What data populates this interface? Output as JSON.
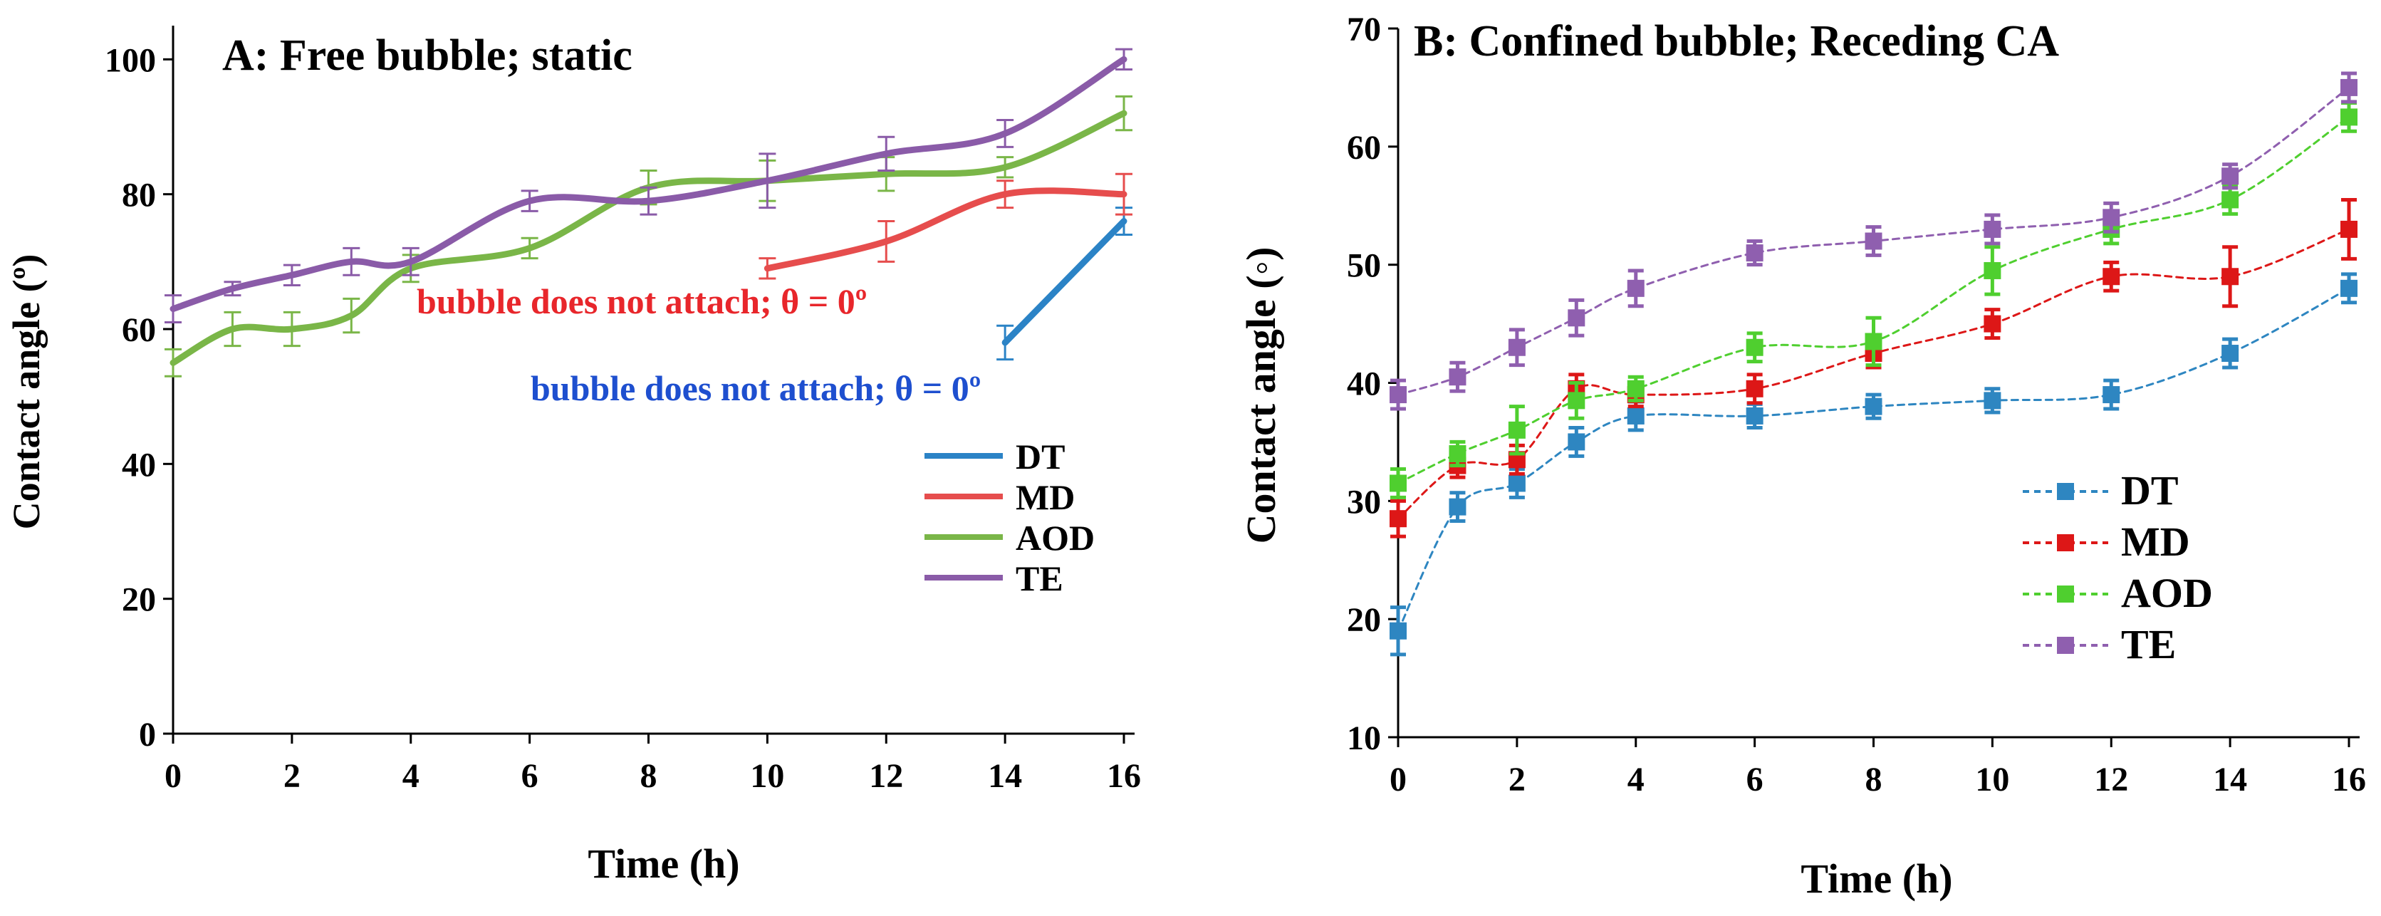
{
  "chart_data": [
    {
      "type": "line",
      "title": "A: Free bubble; static",
      "xlabel": "Time (h)",
      "ylabel": "Contact angle (º)",
      "xlim": [
        0,
        16
      ],
      "ylim": [
        0,
        105
      ],
      "xticks": [
        0,
        2,
        4,
        6,
        8,
        10,
        12,
        14,
        16
      ],
      "yticks": [
        0,
        20,
        40,
        60,
        80,
        100
      ],
      "xtick_labels": [
        "0",
        "2",
        "4",
        "6",
        "8",
        "10",
        "12",
        "14",
        "16"
      ],
      "ytick_labels": [
        "0",
        "20",
        "40",
        "60",
        "80",
        "100"
      ],
      "grid": false,
      "legend_position": "lower-right",
      "series": [
        {
          "name": "DT",
          "color": "#2b83c6",
          "x": [
            14,
            16
          ],
          "y": [
            58,
            76
          ],
          "err": [
            2.5,
            2.0
          ]
        },
        {
          "name": "MD",
          "color": "#e64d4d",
          "x": [
            10,
            12,
            14,
            16
          ],
          "y": [
            69,
            73,
            80,
            80
          ],
          "err": [
            1.5,
            3.0,
            2.0,
            3.0
          ]
        },
        {
          "name": "AOD",
          "color": "#7ab648",
          "x": [
            0,
            1,
            2,
            3,
            4,
            6,
            8,
            10,
            12,
            14,
            16
          ],
          "y": [
            55,
            60,
            60,
            62,
            69,
            72,
            81,
            82,
            83,
            84,
            92
          ],
          "err": [
            2.0,
            2.5,
            2.5,
            2.5,
            2.0,
            1.5,
            2.5,
            3.0,
            2.5,
            1.5,
            2.5
          ]
        },
        {
          "name": "TE",
          "color": "#8a5ba8",
          "x": [
            0,
            1,
            2,
            3,
            4,
            6,
            8,
            10,
            12,
            14,
            16
          ],
          "y": [
            63,
            66,
            68,
            70,
            70,
            79,
            79,
            82,
            86,
            89,
            100
          ],
          "err": [
            2.0,
            1.0,
            1.5,
            2.0,
            2.0,
            1.5,
            2.0,
            4.0,
            2.5,
            2.0,
            1.5
          ]
        }
      ],
      "annotations": [
        {
          "text": "bubble does not attach; θ = 0º",
          "color": "#e8262b"
        },
        {
          "text": "bubble does not attach; θ = 0º",
          "color": "#1e4fcf"
        }
      ]
    },
    {
      "type": "line",
      "title": "B: Confined bubble; Receding CA",
      "xlabel": "Time (h)",
      "ylabel": "Contact angle (◦)",
      "xlim": [
        0,
        16
      ],
      "ylim": [
        10,
        70
      ],
      "xticks": [
        0,
        2,
        4,
        6,
        8,
        10,
        12,
        14,
        16
      ],
      "yticks": [
        10,
        20,
        30,
        40,
        50,
        60,
        70
      ],
      "xtick_labels": [
        "0",
        "2",
        "4",
        "6",
        "8",
        "10",
        "12",
        "14",
        "16"
      ],
      "ytick_labels": [
        "10",
        "20",
        "30",
        "40",
        "50",
        "60",
        "70"
      ],
      "grid": false,
      "legend_position": "lower-right",
      "series": [
        {
          "name": "DT",
          "color": "#2e86c1",
          "x": [
            0,
            1,
            2,
            3,
            4,
            6,
            8,
            10,
            12,
            14,
            16
          ],
          "y": [
            19,
            29.5,
            31.5,
            35,
            37.2,
            37.2,
            38,
            38.5,
            39,
            42.5,
            48
          ],
          "err": [
            2.0,
            1.2,
            1.2,
            1.2,
            1.2,
            1.0,
            1.0,
            1.0,
            1.2,
            1.2,
            1.2
          ]
        },
        {
          "name": "MD",
          "color": "#dd1717",
          "x": [
            0,
            1,
            2,
            3,
            4,
            6,
            8,
            10,
            12,
            14,
            16
          ],
          "y": [
            28.5,
            33,
            33.5,
            39.5,
            39,
            39.5,
            42.5,
            45,
            49,
            49,
            53
          ],
          "err": [
            1.5,
            1.0,
            1.2,
            1.2,
            1.0,
            1.2,
            1.2,
            1.2,
            1.2,
            2.5,
            2.5
          ]
        },
        {
          "name": "AOD",
          "color": "#4fcf2f",
          "x": [
            0,
            1,
            2,
            3,
            4,
            6,
            8,
            10,
            12,
            14,
            16
          ],
          "y": [
            31.5,
            34,
            36,
            38.5,
            39.5,
            43,
            43.5,
            49.5,
            53,
            55.5,
            62.5
          ],
          "err": [
            1.2,
            1.0,
            2.0,
            1.5,
            1.0,
            1.2,
            2.0,
            2.0,
            1.2,
            1.2,
            1.2
          ]
        },
        {
          "name": "TE",
          "color": "#8f5faf",
          "x": [
            0,
            1,
            2,
            3,
            4,
            6,
            8,
            10,
            12,
            14,
            16
          ],
          "y": [
            39,
            40.5,
            43,
            45.5,
            48,
            51,
            52,
            53,
            54,
            57.5,
            65
          ],
          "err": [
            1.2,
            1.2,
            1.5,
            1.5,
            1.5,
            1.0,
            1.2,
            1.2,
            1.2,
            1.0,
            1.2
          ]
        }
      ]
    }
  ]
}
